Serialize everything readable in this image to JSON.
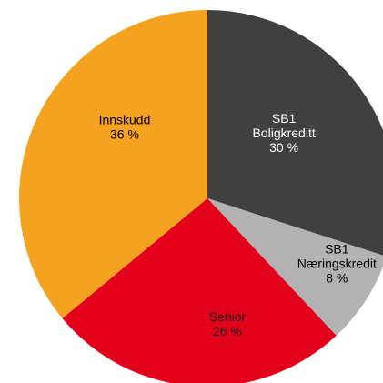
{
  "chart_data": {
    "type": "pie",
    "categories": [
      "SB1 Boligkreditt",
      "SB1 Næringskredit",
      "Senior",
      "Innskudd"
    ],
    "values": [
      30,
      8,
      26,
      36
    ],
    "value_labels": [
      "30 %",
      "8 %",
      "26 %",
      "36 %"
    ],
    "colors": [
      "#404040",
      "#b2b2b2",
      "#e2001a",
      "#f4a21f"
    ]
  }
}
